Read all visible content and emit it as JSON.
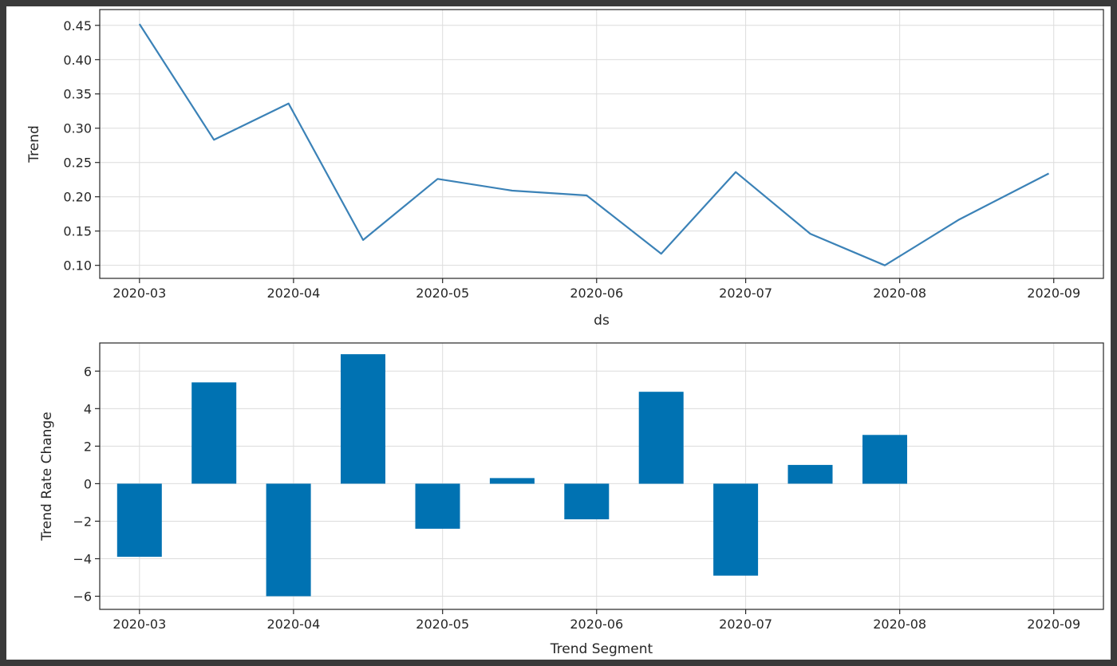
{
  "chart_data": [
    {
      "type": "line",
      "title": "",
      "xlabel": "ds",
      "ylabel": "Trend",
      "x_ticks": [
        "2020-03",
        "2020-04",
        "2020-05",
        "2020-06",
        "2020-07",
        "2020-08",
        "2020-09"
      ],
      "y_ticks": [
        "0.10",
        "0.15",
        "0.20",
        "0.25",
        "0.30",
        "0.35",
        "0.40",
        "0.45"
      ],
      "x_range": [
        "2020-02-22",
        "2020-09-11"
      ],
      "ylim": [
        0.081,
        0.473
      ],
      "grid": true,
      "color": "#3b82b7",
      "series": [
        {
          "x": [
            "2020-03-01",
            "2020-03-16",
            "2020-03-31",
            "2020-04-15",
            "2020-04-30",
            "2020-05-15",
            "2020-05-30",
            "2020-06-14",
            "2020-06-29",
            "2020-07-14",
            "2020-07-29",
            "2020-08-13",
            "2020-08-31"
          ],
          "values": [
            0.452,
            0.283,
            0.336,
            0.137,
            0.226,
            0.209,
            0.202,
            0.117,
            0.236,
            0.146,
            0.1,
            0.167,
            0.234
          ]
        }
      ]
    },
    {
      "type": "bar",
      "title": "",
      "xlabel": "Trend Segment",
      "ylabel": "Trend Rate Change",
      "x_ticks": [
        "2020-03",
        "2020-04",
        "2020-05",
        "2020-06",
        "2020-07",
        "2020-08",
        "2020-09"
      ],
      "y_ticks": [
        "−6",
        "−4",
        "−2",
        "0",
        "2",
        "4",
        "6"
      ],
      "x_range": [
        "2020-02-22",
        "2020-09-11"
      ],
      "ylim": [
        -6.7,
        7.5
      ],
      "grid": true,
      "color": "#0072b2",
      "series": [
        {
          "x": [
            "2020-03-01",
            "2020-03-16",
            "2020-03-31",
            "2020-04-15",
            "2020-04-30",
            "2020-05-15",
            "2020-05-30",
            "2020-06-14",
            "2020-06-29",
            "2020-07-14",
            "2020-07-29"
          ],
          "values": [
            -3.9,
            5.4,
            -6.0,
            6.9,
            -2.4,
            0.3,
            -1.9,
            4.9,
            -4.9,
            1.0,
            2.6
          ]
        }
      ]
    }
  ]
}
